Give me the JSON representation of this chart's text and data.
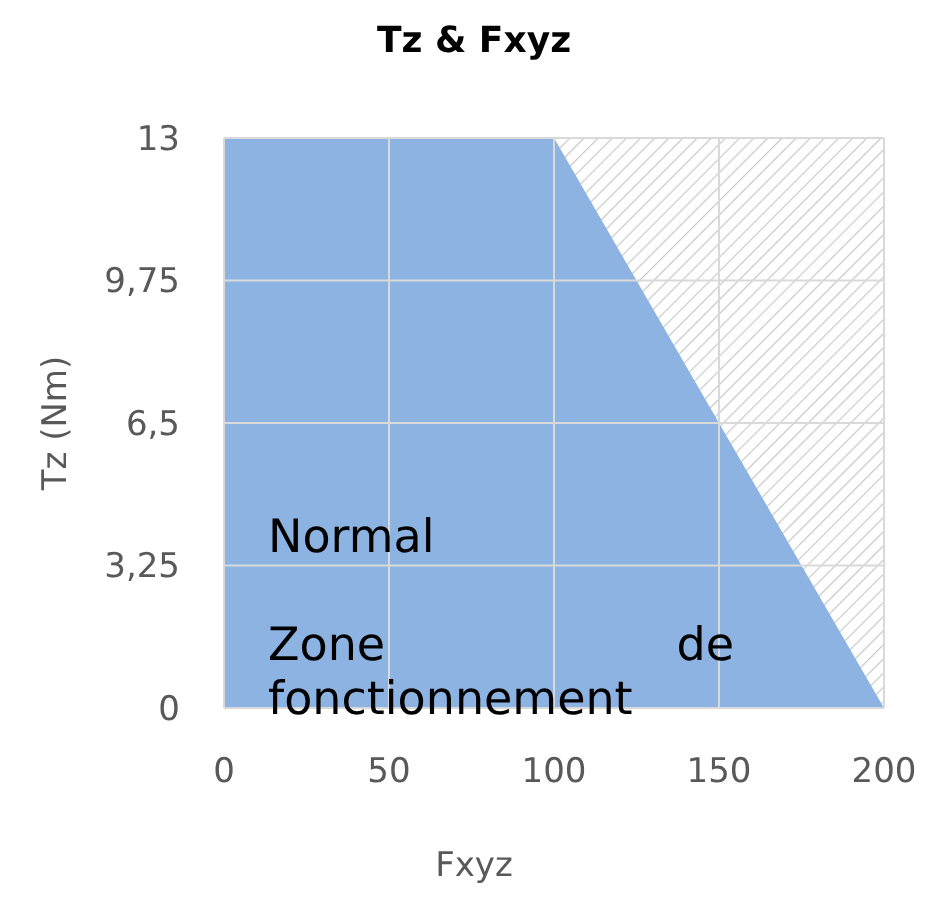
{
  "chart_data": {
    "type": "area",
    "title": "Tz & Fxyz",
    "xlabel": "Fxyz",
    "ylabel": "Tz (Nm)",
    "x": [
      0,
      100,
      200
    ],
    "series": [
      {
        "name": null,
        "color": "#8db3e2",
        "values": [
          13,
          13,
          0
        ]
      }
    ],
    "xlim": [
      0,
      200
    ],
    "xticks": [
      0,
      50,
      100,
      150,
      200
    ],
    "ylim": [
      0,
      13
    ],
    "yticks": [
      0,
      {
        "value": 3.25,
        "label": "3,25"
      },
      {
        "value": 6.5,
        "label": "6,5"
      },
      {
        "value": 9.75,
        "label": "9,75"
      },
      13
    ],
    "grid": true,
    "annotations": [
      "Normal",
      "Zone de fonctionnement"
    ]
  }
}
